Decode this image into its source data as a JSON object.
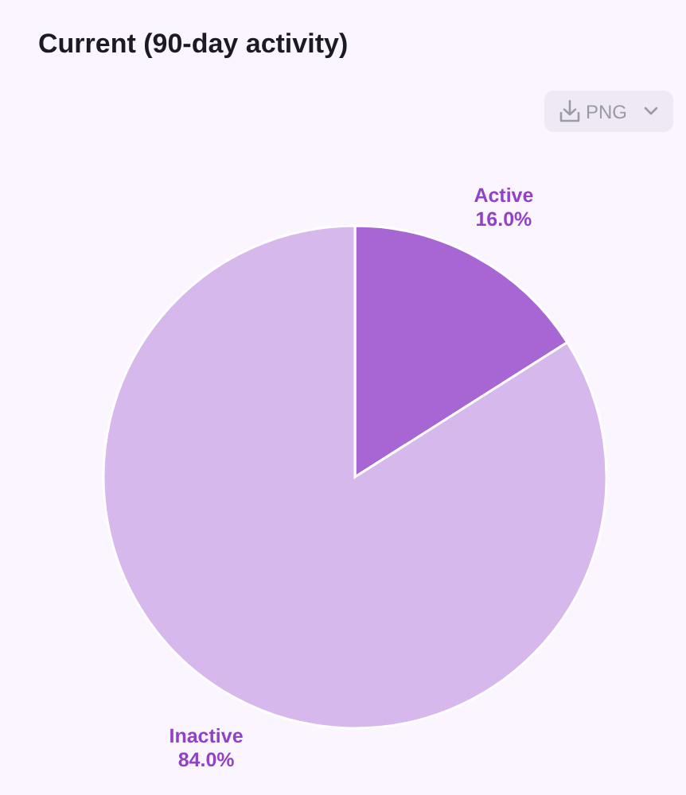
{
  "chart_data": {
    "type": "pie",
    "title": "Current (90-day activity)",
    "categories": [
      "Active",
      "Inactive"
    ],
    "values": [
      16.0,
      84.0
    ],
    "colors": [
      "#a865d4",
      "#d7b8ec"
    ],
    "value_labels": [
      "16.0%",
      "84.0%"
    ],
    "annotations": [
      "PNG"
    ]
  }
}
